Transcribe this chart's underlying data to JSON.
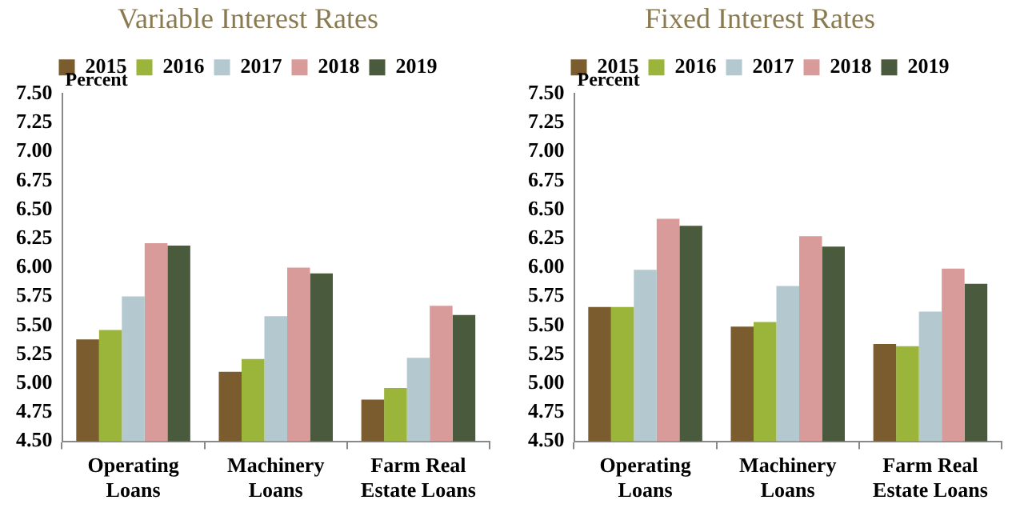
{
  "chart_data": [
    {
      "type": "bar",
      "title": "Variable Interest Rates",
      "ylabel": "Percent",
      "categories": [
        "Operating\nLoans",
        "Machinery\nLoans",
        "Farm Real\nEstate Loans"
      ],
      "series": [
        {
          "name": "2015",
          "color": "#7a5c2e",
          "values": [
            5.38,
            5.1,
            4.86
          ]
        },
        {
          "name": "2016",
          "color": "#9ab53a",
          "values": [
            5.46,
            5.21,
            4.96
          ]
        },
        {
          "name": "2017",
          "color": "#b4c8d0",
          "values": [
            5.75,
            5.58,
            5.22
          ]
        },
        {
          "name": "2018",
          "color": "#d99a9a",
          "values": [
            6.21,
            6.0,
            5.67
          ]
        },
        {
          "name": "2019",
          "color": "#4a5a3c",
          "values": [
            6.19,
            5.95,
            5.59
          ]
        }
      ],
      "ylim": [
        4.5,
        7.5
      ],
      "yticks": [
        {
          "value": 4.5,
          "label": "4.50"
        },
        {
          "value": 4.75,
          "label": "4.75"
        },
        {
          "value": 5,
          "label": "5.00"
        },
        {
          "value": 5.25,
          "label": "5.25"
        },
        {
          "value": 5.5,
          "label": "5.50"
        },
        {
          "value": 5.75,
          "label": "5.75"
        },
        {
          "value": 6,
          "label": "6.00"
        },
        {
          "value": 6.25,
          "label": "6.25"
        },
        {
          "value": 6.5,
          "label": "6.50"
        },
        {
          "value": 6.75,
          "label": "6.75"
        },
        {
          "value": 7,
          "label": "7.00"
        },
        {
          "value": 7.25,
          "label": "7.25"
        },
        {
          "value": 7.5,
          "label": "7.50"
        }
      ],
      "grid": false,
      "legend": "top"
    },
    {
      "type": "bar",
      "title": "Fixed Interest Rates",
      "ylabel": "Percent",
      "categories": [
        "Operating\nLoans",
        "Machinery\nLoans",
        "Farm Real\nEstate Loans"
      ],
      "series": [
        {
          "name": "2015",
          "color": "#7a5c2e",
          "values": [
            5.66,
            5.49,
            5.34
          ]
        },
        {
          "name": "2016",
          "color": "#9ab53a",
          "values": [
            5.66,
            5.53,
            5.32
          ]
        },
        {
          "name": "2017",
          "color": "#b4c8d0",
          "values": [
            5.98,
            5.84,
            5.62
          ]
        },
        {
          "name": "2018",
          "color": "#d99a9a",
          "values": [
            6.42,
            6.27,
            5.99
          ]
        },
        {
          "name": "2019",
          "color": "#4a5a3c",
          "values": [
            6.36,
            6.18,
            5.86
          ]
        }
      ],
      "ylim": [
        4.5,
        7.5
      ],
      "yticks": [
        {
          "value": 4.5,
          "label": "4.50"
        },
        {
          "value": 4.75,
          "label": "4.75"
        },
        {
          "value": 5,
          "label": "5.00"
        },
        {
          "value": 5.25,
          "label": "5.25"
        },
        {
          "value": 5.5,
          "label": "5.50"
        },
        {
          "value": 5.75,
          "label": "5.75"
        },
        {
          "value": 6,
          "label": "6.00"
        },
        {
          "value": 6.25,
          "label": "6.25"
        },
        {
          "value": 6.5,
          "label": "6.50"
        },
        {
          "value": 6.75,
          "label": "6.75"
        },
        {
          "value": 7,
          "label": "7.00"
        },
        {
          "value": 7.25,
          "label": "7.25"
        },
        {
          "value": 7.5,
          "label": "7.50"
        }
      ],
      "grid": false,
      "legend": "top"
    }
  ]
}
